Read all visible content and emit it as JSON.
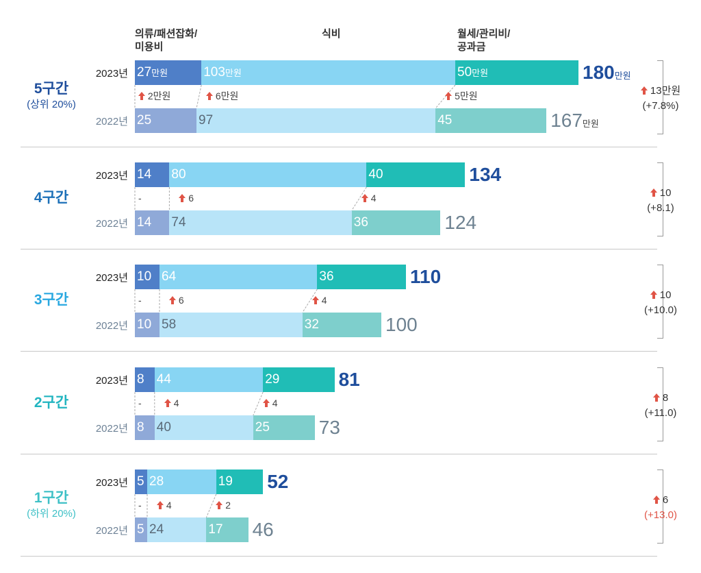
{
  "chart_data": {
    "type": "bar",
    "title": "",
    "column_headers": [
      "의류/패션잡화/",
      "미용비",
      "식비",
      "월세/관리비/",
      "공과금"
    ],
    "unit": "만원",
    "groups": [
      {
        "label": "5구간",
        "sublabel": "(상위 20%)",
        "color": "#1f4e9c",
        "y2023": {
          "year": "2023년",
          "values": [
            27,
            103,
            50
          ],
          "total": 180,
          "labels": [
            "27",
            "103",
            "50"
          ]
        },
        "y2022": {
          "year": "2022년",
          "values": [
            25,
            97,
            45
          ],
          "total": 167,
          "labels": [
            "25",
            "97",
            "45"
          ]
        },
        "increase": [
          "2만원",
          "6만원",
          "5만원"
        ],
        "change": "13만원",
        "change_pct": "(+7.8%)"
      },
      {
        "label": "4구간",
        "sublabel": "",
        "color": "#1c70b8",
        "y2023": {
          "year": "2023년",
          "values": [
            14,
            80,
            40
          ],
          "total": 134,
          "labels": [
            "14",
            "80",
            "40"
          ]
        },
        "y2022": {
          "year": "2022년",
          "values": [
            14,
            74,
            36
          ],
          "total": 124,
          "labels": [
            "14",
            "74",
            "36"
          ]
        },
        "increase": [
          "-",
          "6",
          "4"
        ],
        "change": "10",
        "change_pct": "(+8.1)"
      },
      {
        "label": "3구간",
        "sublabel": "",
        "color": "#2aa8e0",
        "y2023": {
          "year": "2023년",
          "values": [
            10,
            64,
            36
          ],
          "total": 110,
          "labels": [
            "10",
            "64",
            "36"
          ]
        },
        "y2022": {
          "year": "2022년",
          "values": [
            10,
            58,
            32
          ],
          "total": 100,
          "labels": [
            "10",
            "58",
            "32"
          ]
        },
        "increase": [
          "-",
          "6",
          "4"
        ],
        "change": "10",
        "change_pct": "(+10.0)"
      },
      {
        "label": "2구간",
        "sublabel": "",
        "color": "#22b5c0",
        "y2023": {
          "year": "2023년",
          "values": [
            8,
            44,
            29
          ],
          "total": 81,
          "labels": [
            "8",
            "44",
            "29"
          ]
        },
        "y2022": {
          "year": "2022년",
          "values": [
            8,
            40,
            25
          ],
          "total": 73,
          "labels": [
            "8",
            "40",
            "25"
          ]
        },
        "increase": [
          "-",
          "4",
          "4"
        ],
        "change": "8",
        "change_pct": "(+11.0)"
      },
      {
        "label": "1구간",
        "sublabel": "(하위 20%)",
        "color": "#3ec0c6",
        "y2023": {
          "year": "2023년",
          "values": [
            5,
            28,
            19
          ],
          "total": 52,
          "labels": [
            "5",
            "28",
            "19"
          ]
        },
        "y2022": {
          "year": "2022년",
          "values": [
            5,
            24,
            17
          ],
          "total": 46,
          "labels": [
            "5",
            "24",
            "17"
          ]
        },
        "increase": [
          "-",
          "4",
          "2"
        ],
        "change": "6",
        "change_pct": "(+13.0)"
      }
    ],
    "colors": {
      "y2023": [
        "#4f7fc8",
        "#88d5f3",
        "#20bdb6"
      ],
      "y2022": [
        "#8fa9d8",
        "#b8e4f8",
        "#7ecfcc"
      ],
      "increase_arrow": "#e05446",
      "total_2023": "#1f4e9c",
      "total_2022": "#6e8291",
      "change_pct_highlight": "#e05446"
    }
  }
}
